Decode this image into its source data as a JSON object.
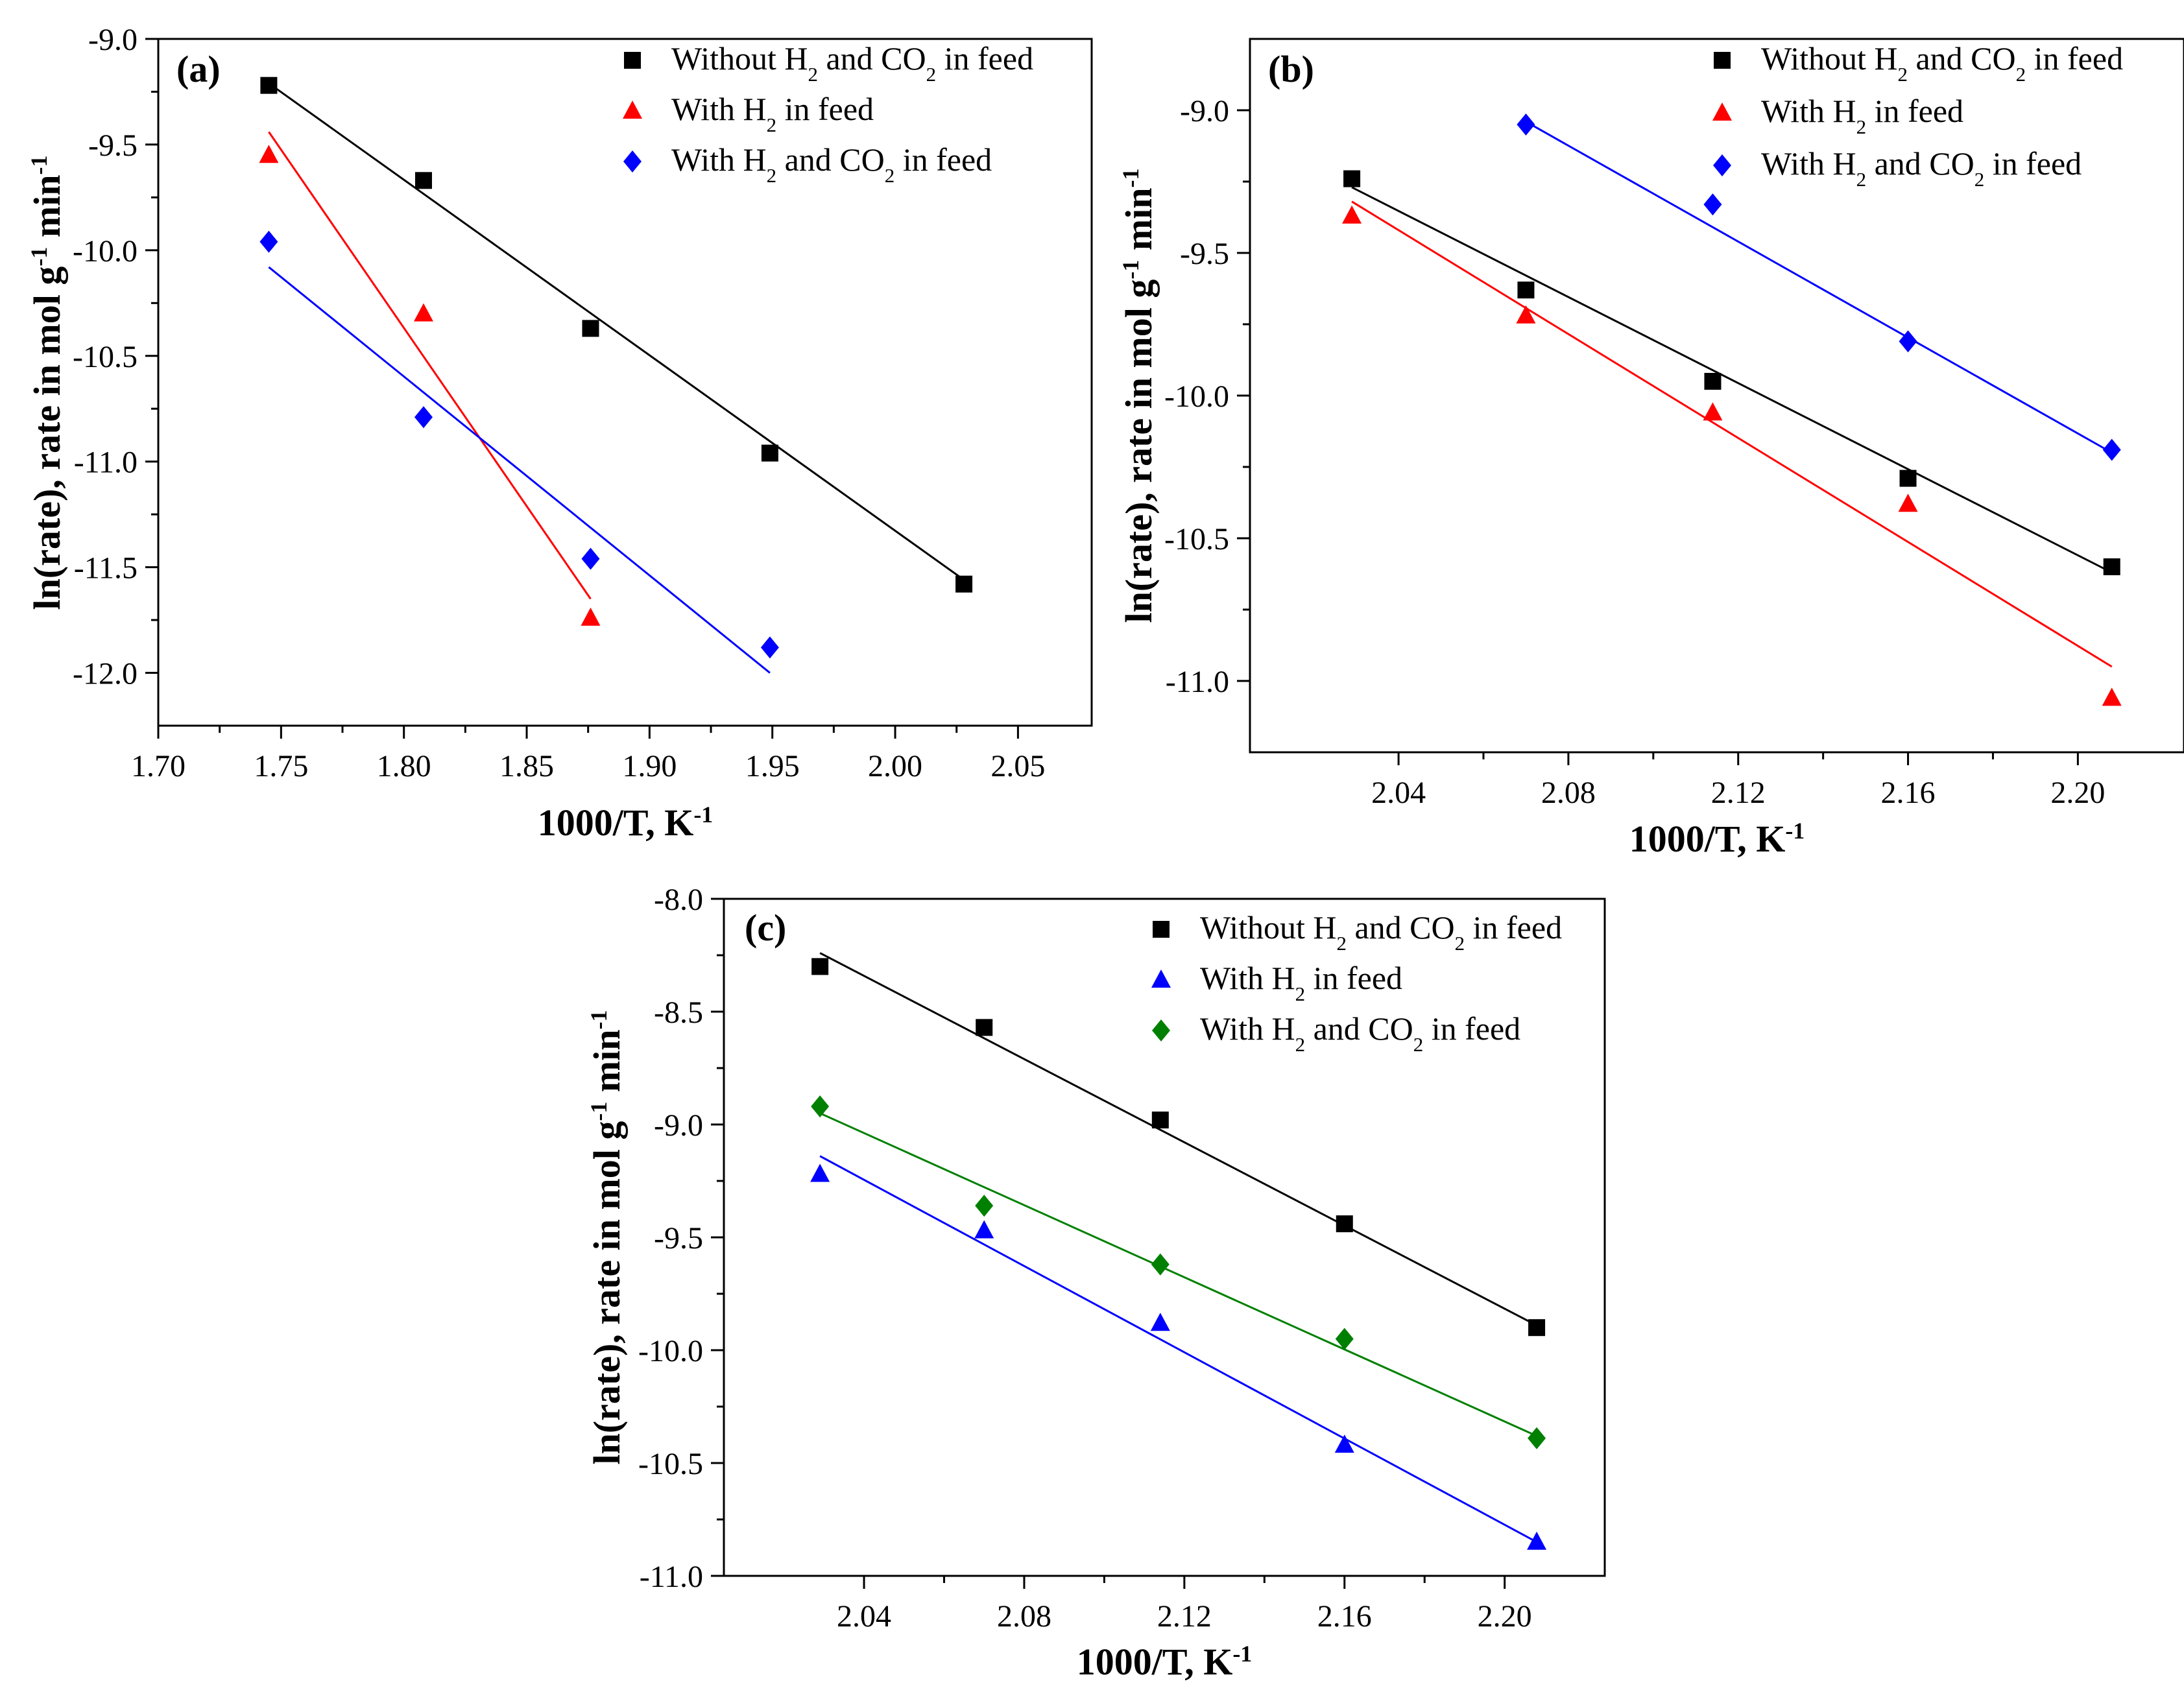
{
  "chart_data": [
    {
      "type": "scatter",
      "panel": "(a)",
      "xlabel": "1000/T, K",
      "xlabel_sup": "-1",
      "ylabel_parts": [
        "ln(rate), rate in mol g",
        "-1",
        " min",
        "-1"
      ],
      "xlim": [
        1.7,
        2.08
      ],
      "ylim": [
        -12.25,
        -9.0
      ],
      "xticks": [
        1.7,
        1.75,
        1.8,
        1.85,
        1.9,
        1.95,
        2.0,
        2.05
      ],
      "xtick_labels": [
        "1.70",
        "1.75",
        "1.80",
        "1.85",
        "1.90",
        "1.95",
        "2.00",
        "2.05"
      ],
      "yticks": [
        -9.0,
        -9.5,
        -10.0,
        -10.5,
        -11.0,
        -11.5,
        -12.0
      ],
      "ytick_labels": [
        "-9.0",
        "-9.5",
        "-10.0",
        "-10.5",
        "-11.0",
        "-11.5",
        "-12.0"
      ],
      "legend_position": "top-right",
      "series": [
        {
          "name": "Without H2 and CO2 in feed",
          "legend_parts": [
            "Without H",
            "2",
            " and CO",
            "2",
            " in feed"
          ],
          "color": "#000000",
          "marker": "square",
          "x": [
            1.745,
            1.808,
            1.876,
            1.949,
            2.028
          ],
          "y": [
            -9.22,
            -9.67,
            -10.37,
            -10.96,
            -11.58
          ],
          "fit": [
            [
              1.745,
              -9.21
            ],
            [
              2.028,
              -11.56
            ]
          ]
        },
        {
          "name": "With H2 in feed",
          "legend_parts": [
            "With H",
            "2",
            " in feed"
          ],
          "color": "#ff0000",
          "marker": "triangle",
          "x": [
            1.745,
            1.808,
            1.876
          ],
          "y": [
            -9.55,
            -10.3,
            -11.74
          ],
          "fit": [
            [
              1.745,
              -9.44
            ],
            [
              1.876,
              -11.65
            ]
          ]
        },
        {
          "name": "With H2 and CO2 in feed",
          "legend_parts": [
            "With H",
            "2",
            " and CO",
            "2",
            " in feed"
          ],
          "color": "#0000ff",
          "marker": "diamond",
          "x": [
            1.745,
            1.808,
            1.876,
            1.949
          ],
          "y": [
            -9.96,
            -10.79,
            -11.46,
            -11.88
          ],
          "fit": [
            [
              1.745,
              -10.08
            ],
            [
              1.949,
              -12.0
            ]
          ]
        }
      ]
    },
    {
      "type": "scatter",
      "panel": "(b)",
      "xlabel": "1000/T, K",
      "xlabel_sup": "-1",
      "ylabel_parts": [
        "ln(rate), rate in mol g",
        "-1",
        " min",
        "-1"
      ],
      "xlim": [
        2.005,
        2.225
      ],
      "ylim": [
        -11.25,
        -8.75
      ],
      "xticks": [
        2.04,
        2.08,
        2.12,
        2.16,
        2.2
      ],
      "xtick_labels": [
        "2.04",
        "2.08",
        "2.12",
        "2.16",
        "2.20"
      ],
      "yticks": [
        -9.0,
        -9.5,
        -10.0,
        -10.5,
        -11.0
      ],
      "ytick_labels": [
        "-9.0",
        "-9.5",
        "-10.0",
        "-10.5",
        "-11.0"
      ],
      "legend_position": "top-right",
      "series": [
        {
          "name": "Without H2 and CO2 in feed",
          "legend_parts": [
            "Without H",
            "2",
            " and CO",
            "2",
            " in feed"
          ],
          "color": "#000000",
          "marker": "square",
          "x": [
            2.029,
            2.07,
            2.114,
            2.16,
            2.208
          ],
          "y": [
            -9.24,
            -9.63,
            -9.95,
            -10.29,
            -10.6
          ],
          "fit": [
            [
              2.029,
              -9.27
            ],
            [
              2.208,
              -10.62
            ]
          ]
        },
        {
          "name": "With H2 in feed",
          "legend_parts": [
            "With H",
            "2",
            " in feed"
          ],
          "color": "#ff0000",
          "marker": "triangle",
          "x": [
            2.029,
            2.07,
            2.114,
            2.16,
            2.208
          ],
          "y": [
            -9.37,
            -9.72,
            -10.06,
            -10.38,
            -11.06
          ],
          "fit": [
            [
              2.029,
              -9.32
            ],
            [
              2.208,
              -10.95
            ]
          ]
        },
        {
          "name": "With H2 and CO2 in feed",
          "legend_parts": [
            "With H",
            "2",
            " and CO",
            "2",
            " in feed"
          ],
          "color": "#0000ff",
          "marker": "diamond",
          "x": [
            2.07,
            2.114,
            2.16,
            2.208
          ],
          "y": [
            -9.05,
            -9.33,
            -9.81,
            -10.19
          ],
          "fit": [
            [
              2.07,
              -9.04
            ],
            [
              2.208,
              -10.2
            ]
          ]
        }
      ]
    },
    {
      "type": "scatter",
      "panel": "(c)",
      "xlabel": "1000/T, K",
      "xlabel_sup": "-1",
      "ylabel_parts": [
        "ln(rate), rate in mol g",
        "-1",
        " min",
        "-1"
      ],
      "xlim": [
        2.005,
        2.225
      ],
      "ylim": [
        -11.0,
        -8.0
      ],
      "xticks": [
        2.04,
        2.08,
        2.12,
        2.16,
        2.2
      ],
      "xtick_labels": [
        "2.04",
        "2.08",
        "2.12",
        "2.16",
        "2.20"
      ],
      "yticks": [
        -8.0,
        -8.5,
        -9.0,
        -9.5,
        -10.0,
        -10.5,
        -11.0
      ],
      "ytick_labels": [
        "-8.0",
        "-8.5",
        "-9.0",
        "-9.5",
        "-10.0",
        "-10.5",
        "-11.0"
      ],
      "legend_position": "top-right",
      "series": [
        {
          "name": "Without H2 and CO2 in feed",
          "legend_parts": [
            "Without H",
            "2",
            " and CO",
            "2",
            " in feed"
          ],
          "color": "#000000",
          "marker": "square",
          "x": [
            2.029,
            2.07,
            2.114,
            2.16,
            2.208
          ],
          "y": [
            -8.3,
            -8.57,
            -8.98,
            -9.44,
            -9.9
          ],
          "fit": [
            [
              2.029,
              -8.24
            ],
            [
              2.208,
              -9.89
            ]
          ]
        },
        {
          "name": "With H2 in feed",
          "legend_parts": [
            "With H",
            "2",
            " in feed"
          ],
          "color": "#0000ff",
          "marker": "triangle",
          "x": [
            2.029,
            2.07,
            2.114,
            2.16,
            2.208
          ],
          "y": [
            -9.22,
            -9.47,
            -9.88,
            -10.42,
            -10.85
          ],
          "fit": [
            [
              2.029,
              -9.14
            ],
            [
              2.208,
              -10.85
            ]
          ]
        },
        {
          "name": "With H2 and CO2 in feed",
          "legend_parts": [
            "With H",
            "2",
            " and CO",
            "2",
            " in feed"
          ],
          "color": "#008000",
          "marker": "diamond",
          "x": [
            2.029,
            2.07,
            2.114,
            2.16,
            2.208
          ],
          "y": [
            -8.92,
            -9.36,
            -9.62,
            -9.95,
            -10.39
          ],
          "fit": [
            [
              2.029,
              -8.95
            ],
            [
              2.208,
              -10.38
            ]
          ]
        }
      ]
    }
  ]
}
